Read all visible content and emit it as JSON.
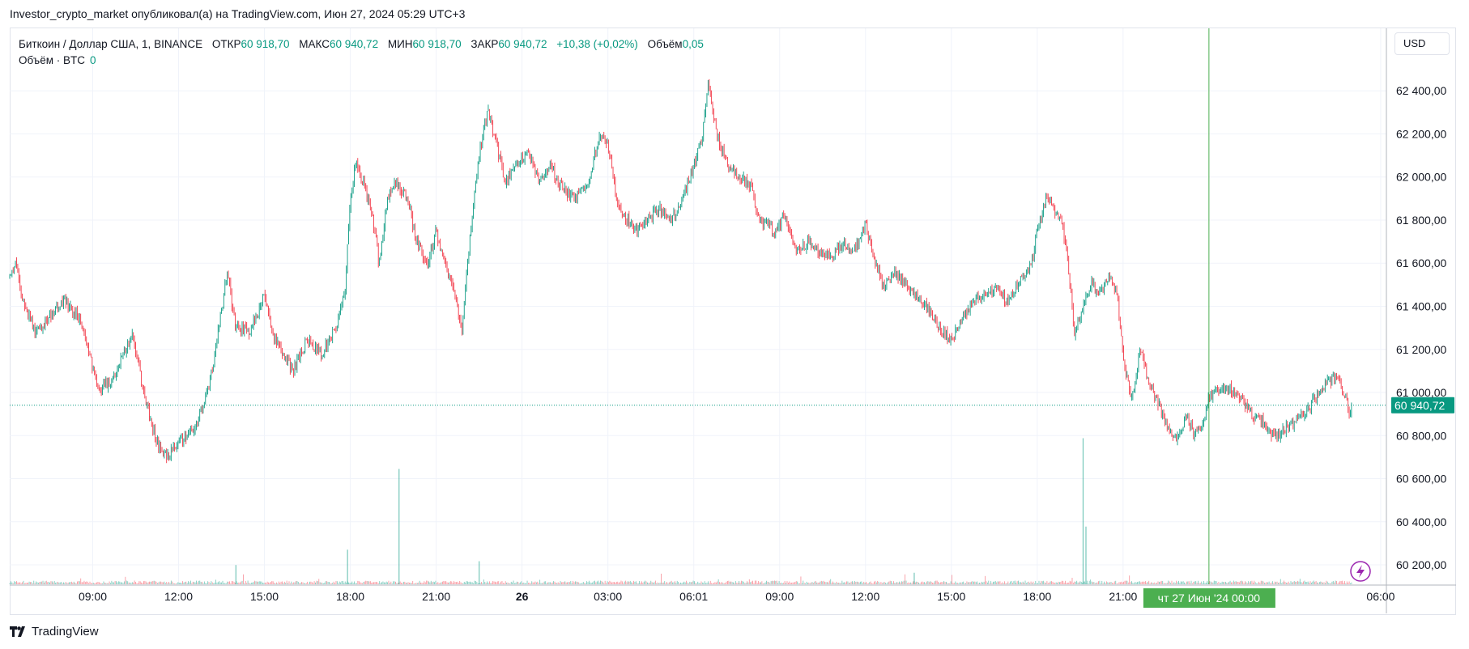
{
  "header": {
    "publisher_line": "Investor_crypto_market опубликовал(а) на TradingView.com, Июн 27, 2024 05:29 UTC+3"
  },
  "legend": {
    "symbol": "Биткоин / Доллар США, 1, BINANCE",
    "open_label": "ОТКР",
    "open_value": "60 918,70",
    "high_label": "МАКС",
    "high_value": "60 940,72",
    "low_label": "МИН",
    "low_value": "60 918,70",
    "close_label": "ЗАКР",
    "close_value": "60 940,72",
    "change": "+10,38 (+0,02%)",
    "volume_label": "Объём",
    "volume_value": "0,05",
    "volume_series_label": "Объём · BTC",
    "volume_series_value": "0"
  },
  "price_scale": {
    "currency": "USD",
    "current_price_label": "60 940,72"
  },
  "crosshair": {
    "time_label": "чт 27 Июн '24   00:00"
  },
  "branding": {
    "name": "TradingView"
  },
  "colors": {
    "up": "#089981",
    "down": "#f23645",
    "crosshair": "#4caf50",
    "grid": "#f0f3fa",
    "current_price_line": "#089981",
    "axis_border": "#e0e3eb",
    "flash": "#9c27b0"
  },
  "icons": {
    "flash": "lightning-icon",
    "logo": "tradingview-logo-icon"
  },
  "chart_data": {
    "type": "candlestick",
    "interval": "1",
    "exchange": "BINANCE",
    "y_axis": {
      "ticks": [
        "62 400,00",
        "62 200,00",
        "62 000,00",
        "61 800,00",
        "61 600,00",
        "61 400,00",
        "61 200,00",
        "61 000,00",
        "60 800,00",
        "60 600,00",
        "60 400,00",
        "60 200,00"
      ],
      "tick_values": [
        62400,
        62200,
        62000,
        61800,
        61600,
        61400,
        61200,
        61000,
        60800,
        60600,
        60400,
        60200
      ],
      "ylim": [
        60110,
        62690
      ]
    },
    "x_axis": {
      "ticks": [
        "09:00",
        "12:00",
        "15:00",
        "18:00",
        "21:00",
        "26",
        "03:00",
        "06:01",
        "09:00",
        "12:00",
        "15:00",
        "18:00",
        "21:00",
        "06:00"
      ],
      "bold_ticks": [
        "26"
      ],
      "tick_hours": [
        9,
        12,
        15,
        18,
        21,
        24,
        27,
        30,
        33,
        36,
        39,
        42,
        45,
        54
      ],
      "xlim_hours": [
        6.1,
        54.2
      ]
    },
    "current_price": 60940.72,
    "crosshair_hours": 48,
    "price_path": [
      [
        6.1,
        61540
      ],
      [
        6.3,
        61600
      ],
      [
        6.5,
        61450
      ],
      [
        7.0,
        61280
      ],
      [
        7.5,
        61350
      ],
      [
        8.0,
        61420
      ],
      [
        8.5,
        61350
      ],
      [
        8.8,
        61220
      ],
      [
        9.2,
        61000
      ],
      [
        9.6,
        61050
      ],
      [
        10.0,
        61150
      ],
      [
        10.4,
        61280
      ],
      [
        10.7,
        61050
      ],
      [
        11.0,
        60880
      ],
      [
        11.3,
        60750
      ],
      [
        11.6,
        60690
      ],
      [
        12.0,
        60780
      ],
      [
        12.5,
        60820
      ],
      [
        12.8,
        60920
      ],
      [
        13.1,
        61050
      ],
      [
        13.4,
        61300
      ],
      [
        13.7,
        61560
      ],
      [
        14.0,
        61300
      ],
      [
        14.5,
        61280
      ],
      [
        15.0,
        61450
      ],
      [
        15.3,
        61250
      ],
      [
        15.6,
        61200
      ],
      [
        16.0,
        61100
      ],
      [
        16.5,
        61250
      ],
      [
        17.0,
        61180
      ],
      [
        17.5,
        61300
      ],
      [
        17.8,
        61450
      ],
      [
        18.0,
        61900
      ],
      [
        18.2,
        62080
      ],
      [
        18.5,
        61950
      ],
      [
        18.8,
        61800
      ],
      [
        19.0,
        61600
      ],
      [
        19.3,
        61900
      ],
      [
        19.6,
        61980
      ],
      [
        20.0,
        61900
      ],
      [
        20.3,
        61700
      ],
      [
        20.7,
        61600
      ],
      [
        21.0,
        61750
      ],
      [
        21.3,
        61600
      ],
      [
        21.6,
        61480
      ],
      [
        21.9,
        61280
      ],
      [
        22.2,
        61750
      ],
      [
        22.5,
        62100
      ],
      [
        22.8,
        62320
      ],
      [
        23.1,
        62150
      ],
      [
        23.4,
        61980
      ],
      [
        23.8,
        62050
      ],
      [
        24.2,
        62120
      ],
      [
        24.6,
        61980
      ],
      [
        25.0,
        62050
      ],
      [
        25.4,
        61950
      ],
      [
        25.8,
        61900
      ],
      [
        26.3,
        61950
      ],
      [
        26.7,
        62200
      ],
      [
        27.0,
        62150
      ],
      [
        27.3,
        61900
      ],
      [
        27.6,
        61820
      ],
      [
        28.0,
        61750
      ],
      [
        28.4,
        61800
      ],
      [
        28.8,
        61850
      ],
      [
        29.2,
        61800
      ],
      [
        29.6,
        61900
      ],
      [
        30.0,
        62050
      ],
      [
        30.3,
        62200
      ],
      [
        30.5,
        62450
      ],
      [
        30.8,
        62200
      ],
      [
        31.2,
        62050
      ],
      [
        31.6,
        62000
      ],
      [
        32.0,
        61950
      ],
      [
        32.3,
        61800
      ],
      [
        32.8,
        61750
      ],
      [
        33.2,
        61820
      ],
      [
        33.6,
        61650
      ],
      [
        34.0,
        61700
      ],
      [
        34.4,
        61650
      ],
      [
        34.8,
        61620
      ],
      [
        35.2,
        61700
      ],
      [
        35.6,
        61650
      ],
      [
        36.0,
        61780
      ],
      [
        36.3,
        61620
      ],
      [
        36.6,
        61500
      ],
      [
        37.0,
        61550
      ],
      [
        37.4,
        61500
      ],
      [
        37.8,
        61450
      ],
      [
        38.2,
        61380
      ],
      [
        38.6,
        61300
      ],
      [
        39.0,
        61240
      ],
      [
        39.4,
        61350
      ],
      [
        39.8,
        61430
      ],
      [
        40.2,
        61450
      ],
      [
        40.6,
        61480
      ],
      [
        41.0,
        61420
      ],
      [
        41.4,
        61520
      ],
      [
        41.8,
        61600
      ],
      [
        42.0,
        61750
      ],
      [
        42.3,
        61900
      ],
      [
        42.6,
        61850
      ],
      [
        42.9,
        61780
      ],
      [
        43.1,
        61550
      ],
      [
        43.3,
        61280
      ],
      [
        43.6,
        61400
      ],
      [
        43.9,
        61500
      ],
      [
        44.2,
        61450
      ],
      [
        44.5,
        61550
      ],
      [
        44.8,
        61450
      ],
      [
        45.0,
        61150
      ],
      [
        45.3,
        60980
      ],
      [
        45.6,
        61200
      ],
      [
        45.9,
        61050
      ],
      [
        46.2,
        60950
      ],
      [
        46.5,
        60850
      ],
      [
        46.9,
        60780
      ],
      [
        47.2,
        60900
      ],
      [
        47.5,
        60800
      ],
      [
        47.8,
        60850
      ],
      [
        48.0,
        60980
      ],
      [
        48.3,
        61000
      ],
      [
        48.6,
        61020
      ],
      [
        48.9,
        61000
      ],
      [
        49.2,
        60950
      ],
      [
        49.5,
        60900
      ],
      [
        49.8,
        60880
      ],
      [
        50.1,
        60820
      ],
      [
        50.4,
        60800
      ],
      [
        50.7,
        60840
      ],
      [
        51.0,
        60860
      ],
      [
        51.3,
        60900
      ],
      [
        51.6,
        60950
      ],
      [
        51.9,
        61000
      ],
      [
        52.2,
        61050
      ],
      [
        52.5,
        61080
      ],
      [
        52.7,
        60990
      ],
      [
        52.9,
        60920
      ],
      [
        53.0,
        60940.72
      ]
    ],
    "volume_spikes": [
      [
        19.7,
        15
      ],
      [
        17.9,
        4.5
      ],
      [
        43.6,
        19
      ],
      [
        43.7,
        7.5
      ],
      [
        14.0,
        2.5
      ],
      [
        22.5,
        3
      ],
      [
        37.7,
        1.5
      ]
    ]
  }
}
